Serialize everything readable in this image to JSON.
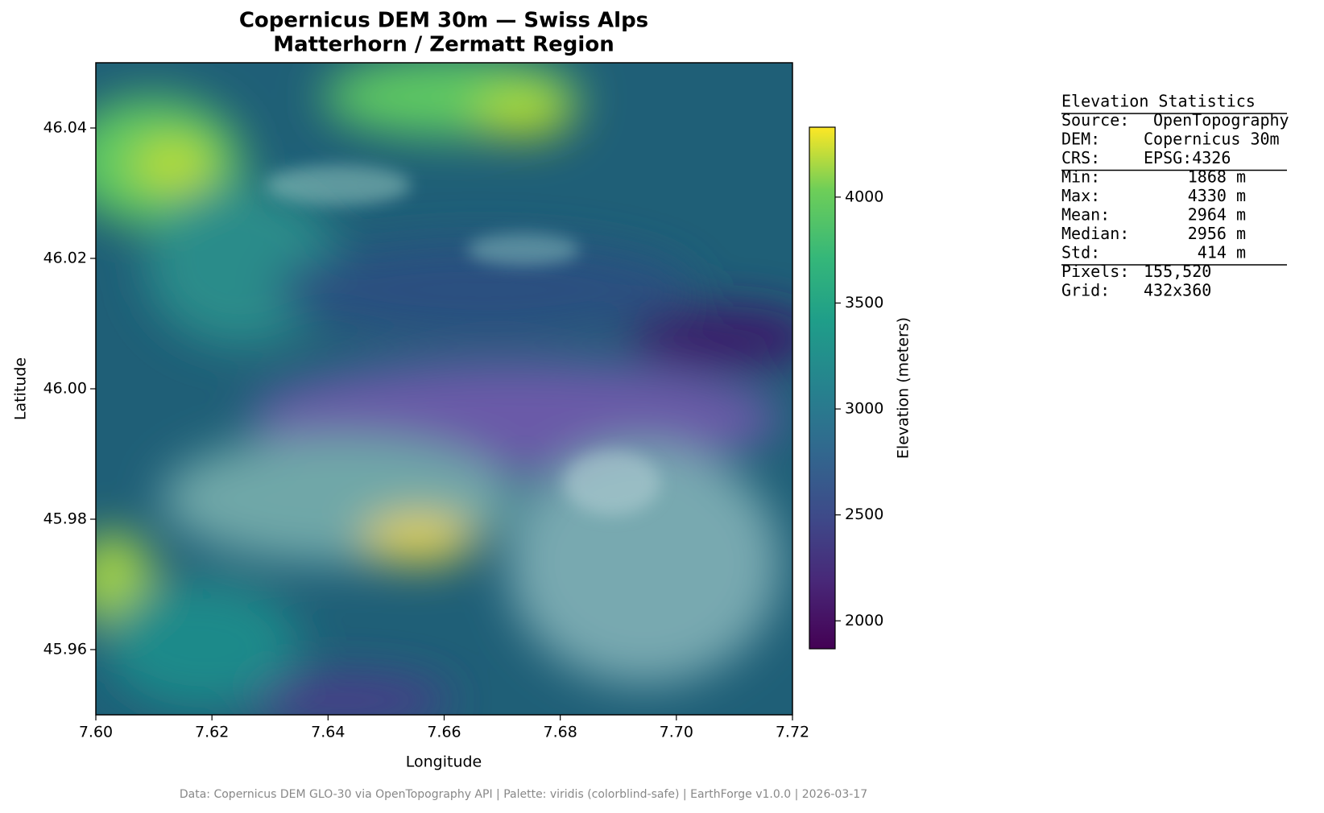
{
  "chart_data": {
    "type": "raster",
    "title": "Copernicus DEM 30m — Swiss Alps",
    "subtitle": "Matterhorn / Zermatt Region",
    "xlabel": "Longitude",
    "ylabel": "Latitude",
    "xlim": [
      7.6,
      7.72
    ],
    "xticks": [
      {
        "value": 7.6,
        "label": "7.60"
      },
      {
        "value": 7.62,
        "label": "7.62"
      },
      {
        "value": 7.64,
        "label": "7.64"
      },
      {
        "value": 7.66,
        "label": "7.66"
      },
      {
        "value": 7.68,
        "label": "7.68"
      },
      {
        "value": 7.7,
        "label": "7.70"
      },
      {
        "value": 7.72,
        "label": "7.72"
      }
    ],
    "ylim": [
      45.95,
      46.05
    ],
    "yticks": [
      45.96,
      45.98,
      {
        "value": 46.0,
        "label": "46.00"
      },
      46.02,
      46.04
    ],
    "colormap": "viridis",
    "colorbar_label": "Elevation (meters)",
    "clim": [
      1868,
      4330
    ],
    "cticks": [
      2000,
      2500,
      3000,
      3500,
      4000
    ]
  },
  "stats_panel": {
    "title": "Elevation Statistics",
    "groups": [
      [
        {
          "label": "Source:",
          "value": "OpenTopography"
        },
        {
          "label": "DEM:",
          "value": "Copernicus 30m"
        },
        {
          "label": "CRS:",
          "value": "EPSG:4326"
        }
      ],
      [
        {
          "label": "Min:",
          "value": "1868 m"
        },
        {
          "label": "Max:",
          "value": "4330 m"
        },
        {
          "label": "Mean:",
          "value": "2964 m"
        },
        {
          "label": "Median:",
          "value": "2956 m"
        },
        {
          "label": "Std:",
          "value": "414 m"
        }
      ],
      [
        {
          "label": "Pixels:",
          "value": "155,520"
        },
        {
          "label": "Grid:",
          "value": "432x360"
        }
      ]
    ]
  },
  "footer": "Data: Copernicus DEM GLO-30 via OpenTopography API | Palette: viridis (colorblind-safe) | EarthForge v1.0.0 | 2026-03-17"
}
